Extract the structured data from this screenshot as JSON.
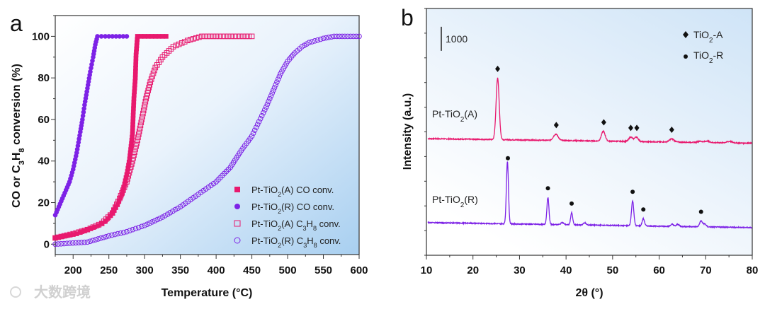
{
  "watermark": "大数跨境",
  "colors": {
    "pink": "#e8196e",
    "purple": "#7d22e6"
  },
  "chart_data": [
    {
      "panel": "a",
      "type": "scatter",
      "xlabel": "Temperature (°C)",
      "ylabel": "CO or C3H8 conversion (%)",
      "xlim": [
        175,
        600
      ],
      "ylim": [
        -5,
        110
      ],
      "xticks": [
        200,
        250,
        300,
        350,
        400,
        450,
        500,
        550,
        600
      ],
      "yticks": [
        0,
        20,
        40,
        60,
        80,
        100
      ],
      "legend_position": "bottom-right",
      "series": [
        {
          "name": "Pt-TiO2(A) CO conv.",
          "marker": "filled-square",
          "color": "pink",
          "points": [
            [
              175,
              3
            ],
            [
              190,
              4
            ],
            [
              205,
              5
            ],
            [
              220,
              7
            ],
            [
              235,
              9
            ],
            [
              245,
              11
            ],
            [
              255,
              15
            ],
            [
              262,
              19
            ],
            [
              268,
              24
            ],
            [
              272,
              29
            ],
            [
              276,
              35
            ],
            [
              279,
              41
            ],
            [
              281,
              47
            ],
            [
              283,
              53
            ],
            [
              284,
              62
            ],
            [
              285,
              70
            ],
            [
              287,
              80
            ],
            [
              288,
              91
            ],
            [
              290,
              100
            ],
            [
              300,
              100
            ],
            [
              310,
              100
            ],
            [
              320,
              100
            ],
            [
              330,
              100
            ]
          ]
        },
        {
          "name": "Pt-TiO2(R) CO conv.",
          "marker": "filled-circle",
          "color": "purple",
          "points": [
            [
              175,
              14
            ],
            [
              180,
              18
            ],
            [
              185,
              22
            ],
            [
              190,
              26
            ],
            [
              195,
              30
            ],
            [
              200,
              36
            ],
            [
              205,
              44
            ],
            [
              210,
              54
            ],
            [
              213,
              60
            ],
            [
              216,
              67
            ],
            [
              220,
              75
            ],
            [
              224,
              83
            ],
            [
              228,
              90
            ],
            [
              231,
              96
            ],
            [
              234,
              100
            ],
            [
              245,
              100
            ],
            [
              255,
              100
            ],
            [
              265,
              100
            ],
            [
              275,
              100
            ]
          ]
        },
        {
          "name": "Pt-TiO2(A) C3H8 conv.",
          "marker": "open-square",
          "color": "pink",
          "points": [
            [
              175,
              3
            ],
            [
              200,
              5
            ],
            [
              220,
              7
            ],
            [
              240,
              10
            ],
            [
              255,
              15
            ],
            [
              265,
              22
            ],
            [
              275,
              30
            ],
            [
              283,
              40
            ],
            [
              290,
              50
            ],
            [
              296,
              60
            ],
            [
              302,
              70
            ],
            [
              308,
              78
            ],
            [
              315,
              85
            ],
            [
              325,
              90
            ],
            [
              340,
              95
            ],
            [
              360,
              98
            ],
            [
              380,
              100
            ],
            [
              400,
              100
            ],
            [
              425,
              100
            ],
            [
              450,
              100
            ]
          ]
        },
        {
          "name": "Pt-TiO2(R) C3H8 conv.",
          "marker": "open-circle",
          "color": "purple",
          "points": [
            [
              175,
              0
            ],
            [
              220,
              1
            ],
            [
              250,
              4
            ],
            [
              275,
              6
            ],
            [
              300,
              9
            ],
            [
              325,
              13
            ],
            [
              350,
              18
            ],
            [
              375,
              24
            ],
            [
              400,
              30
            ],
            [
              420,
              37
            ],
            [
              435,
              45
            ],
            [
              450,
              52
            ],
            [
              460,
              59
            ],
            [
              470,
              66
            ],
            [
              480,
              74
            ],
            [
              490,
              82
            ],
            [
              500,
              88
            ],
            [
              510,
              92
            ],
            [
              520,
              95
            ],
            [
              530,
              97
            ],
            [
              550,
              99
            ],
            [
              565,
              100
            ],
            [
              580,
              100
            ],
            [
              600,
              100
            ]
          ]
        }
      ]
    },
    {
      "panel": "b",
      "type": "line",
      "xlabel": "2θ (°)",
      "ylabel": "Intensity (a.u.)",
      "xlim": [
        10,
        80
      ],
      "ylim": [
        0,
        10260
      ],
      "xticks": [
        10,
        20,
        30,
        40,
        50,
        60,
        70,
        80
      ],
      "scale_bar": {
        "label": "1000",
        "value": 1000
      },
      "legend_position": "top-right",
      "legend": [
        {
          "marker": "diamond",
          "label": "TiO2-A"
        },
        {
          "marker": "dot",
          "label": "TiO2-R"
        }
      ],
      "series": [
        {
          "name": "Pt-TiO2(A)",
          "color": "pink",
          "baseline": [
            4850,
            4660
          ],
          "peaks": [
            [
              25.3,
              2560,
              0.33
            ],
            [
              37.8,
              260,
              0.5
            ],
            [
              48.0,
              410,
              0.4
            ],
            [
              53.9,
              180,
              0.4
            ],
            [
              55.1,
              190,
              0.4
            ],
            [
              62.7,
              130,
              0.5
            ],
            [
              68.8,
              50,
              0.5
            ],
            [
              70.3,
              60,
              0.5
            ],
            [
              75.1,
              60,
              0.6
            ]
          ],
          "markers": [
            25.3,
            37.9,
            48.1,
            53.9,
            55.2,
            62.7
          ],
          "marker": "diamond"
        },
        {
          "name": "Pt-TiO2(R)",
          "color": "purple",
          "baseline": [
            1360,
            1150
          ],
          "peaks": [
            [
              27.4,
              2600,
              0.22
            ],
            [
              36.1,
              1120,
              0.22
            ],
            [
              39.2,
              90,
              0.3
            ],
            [
              41.2,
              500,
              0.22
            ],
            [
              44.0,
              90,
              0.3
            ],
            [
              54.3,
              1030,
              0.25
            ],
            [
              56.6,
              300,
              0.25
            ],
            [
              62.8,
              90,
              0.3
            ],
            [
              64.0,
              90,
              0.3
            ],
            [
              69.0,
              240,
              0.3
            ],
            [
              69.8,
              120,
              0.3
            ]
          ],
          "markers": [
            27.5,
            36.1,
            41.2,
            54.3,
            56.6,
            69.0
          ],
          "marker": "dot"
        }
      ]
    }
  ],
  "panel_labels": [
    "a",
    "b"
  ]
}
